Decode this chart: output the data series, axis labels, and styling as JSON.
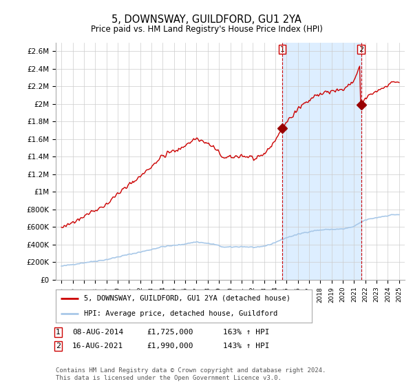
{
  "title": "5, DOWNSWAY, GUILDFORD, GU1 2YA",
  "subtitle": "Price paid vs. HM Land Registry's House Price Index (HPI)",
  "legend_line1": "5, DOWNSWAY, GUILDFORD, GU1 2YA (detached house)",
  "legend_line2": "HPI: Average price, detached house, Guildford",
  "sale1_date": "08-AUG-2014",
  "sale1_price": "£1,725,000",
  "sale1_hpi": "163% ↑ HPI",
  "sale2_date": "16-AUG-2021",
  "sale2_price": "£1,990,000",
  "sale2_hpi": "143% ↑ HPI",
  "footer": "Contains HM Land Registry data © Crown copyright and database right 2024.\nThis data is licensed under the Open Government Licence v3.0.",
  "hpi_color": "#a8c8e8",
  "price_color": "#cc0000",
  "sale_marker_color": "#990000",
  "vline_color": "#cc0000",
  "shade_color": "#ddeeff",
  "background_color": "#ffffff",
  "grid_color": "#cccccc",
  "ylim": [
    0,
    2700000
  ],
  "yticks": [
    0,
    200000,
    400000,
    600000,
    800000,
    1000000,
    1200000,
    1400000,
    1600000,
    1800000,
    2000000,
    2200000,
    2400000,
    2600000
  ],
  "ytick_labels": [
    "£0",
    "£200K",
    "£400K",
    "£600K",
    "£800K",
    "£1M",
    "£1.2M",
    "£1.4M",
    "£1.6M",
    "£1.8M",
    "£2M",
    "£2.2M",
    "£2.4M",
    "£2.6M"
  ],
  "xlim_start": 1994.5,
  "xlim_end": 2025.5,
  "sale1_x": 2014.62,
  "sale1_y": 1725000,
  "sale2_x": 2021.62,
  "sale2_y": 1990000,
  "shade_x1": 2014.62,
  "shade_x2": 2021.62
}
